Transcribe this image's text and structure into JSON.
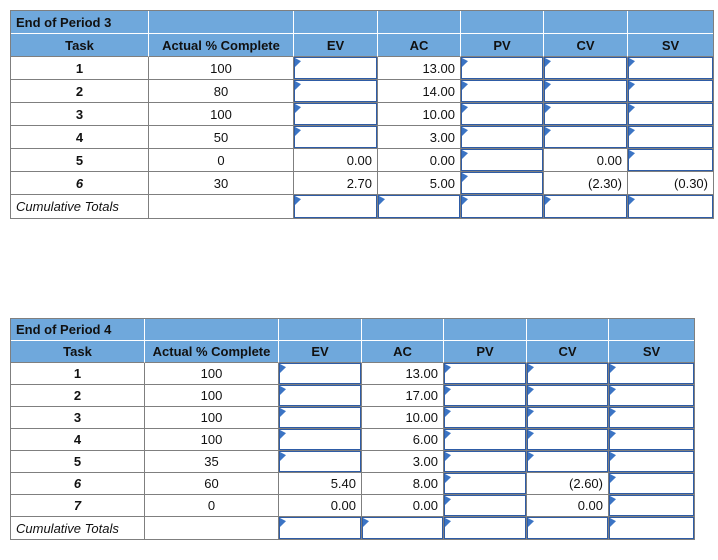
{
  "colors": {
    "header_fill": "#6FA8DC",
    "input_cell_border": "#2E5CA6",
    "flag_triangle": "#3B74C4",
    "gridline": "#7F7F7F",
    "text": "#111111",
    "background": "#FFFFFF"
  },
  "column_headers": [
    "Task",
    "Actual % Complete",
    "EV",
    "AC",
    "PV",
    "CV",
    "SV"
  ],
  "tables": [
    {
      "title": "End of Period 3",
      "cumulative_label": "Cumulative Totals",
      "rows": [
        {
          "task": "1",
          "italic": false,
          "actual": "100",
          "metrics": [
            {
              "col": "EV",
              "text": "",
              "boxed": true
            },
            {
              "col": "AC",
              "text": "13.00",
              "boxed": false
            },
            {
              "col": "PV",
              "text": "",
              "boxed": true
            },
            {
              "col": "CV",
              "text": "",
              "boxed": true
            },
            {
              "col": "SV",
              "text": "",
              "boxed": true
            }
          ]
        },
        {
          "task": "2",
          "italic": false,
          "actual": "80",
          "metrics": [
            {
              "col": "EV",
              "text": "",
              "boxed": true
            },
            {
              "col": "AC",
              "text": "14.00",
              "boxed": false
            },
            {
              "col": "PV",
              "text": "",
              "boxed": true
            },
            {
              "col": "CV",
              "text": "",
              "boxed": true
            },
            {
              "col": "SV",
              "text": "",
              "boxed": true
            }
          ]
        },
        {
          "task": "3",
          "italic": false,
          "actual": "100",
          "metrics": [
            {
              "col": "EV",
              "text": "",
              "boxed": true
            },
            {
              "col": "AC",
              "text": "10.00",
              "boxed": false
            },
            {
              "col": "PV",
              "text": "",
              "boxed": true
            },
            {
              "col": "CV",
              "text": "",
              "boxed": true
            },
            {
              "col": "SV",
              "text": "",
              "boxed": true
            }
          ]
        },
        {
          "task": "4",
          "italic": false,
          "actual": "50",
          "metrics": [
            {
              "col": "EV",
              "text": "",
              "boxed": true
            },
            {
              "col": "AC",
              "text": "3.00",
              "boxed": false
            },
            {
              "col": "PV",
              "text": "",
              "boxed": true
            },
            {
              "col": "CV",
              "text": "",
              "boxed": true
            },
            {
              "col": "SV",
              "text": "",
              "boxed": true
            }
          ]
        },
        {
          "task": "5",
          "italic": false,
          "actual": "0",
          "metrics": [
            {
              "col": "EV",
              "text": "0.00",
              "boxed": false
            },
            {
              "col": "AC",
              "text": "0.00",
              "boxed": false
            },
            {
              "col": "PV",
              "text": "",
              "boxed": true
            },
            {
              "col": "CV",
              "text": "0.00",
              "boxed": false
            },
            {
              "col": "SV",
              "text": "",
              "boxed": true
            }
          ]
        },
        {
          "task": "6",
          "italic": true,
          "actual": "30",
          "metrics": [
            {
              "col": "EV",
              "text": "2.70",
              "boxed": false
            },
            {
              "col": "AC",
              "text": "5.00",
              "boxed": false
            },
            {
              "col": "PV",
              "text": "",
              "boxed": true
            },
            {
              "col": "CV",
              "text": "(2.30)",
              "boxed": false
            },
            {
              "col": "SV",
              "text": "(0.30)",
              "boxed": false
            }
          ]
        }
      ],
      "cumulative": {
        "metrics": [
          {
            "col": "EV",
            "boxed": true
          },
          {
            "col": "AC",
            "boxed": true
          },
          {
            "col": "PV",
            "boxed": true
          },
          {
            "col": "CV",
            "boxed": true
          },
          {
            "col": "SV",
            "boxed": true
          }
        ]
      }
    },
    {
      "title": "End of Period 4",
      "cumulative_label": "Cumulative Totals",
      "rows": [
        {
          "task": "1",
          "italic": false,
          "actual": "100",
          "metrics": [
            {
              "col": "EV",
              "text": "",
              "boxed": true
            },
            {
              "col": "AC",
              "text": "13.00",
              "boxed": false
            },
            {
              "col": "PV",
              "text": "",
              "boxed": true
            },
            {
              "col": "CV",
              "text": "",
              "boxed": true
            },
            {
              "col": "SV",
              "text": "",
              "boxed": true
            }
          ]
        },
        {
          "task": "2",
          "italic": false,
          "actual": "100",
          "metrics": [
            {
              "col": "EV",
              "text": "",
              "boxed": true
            },
            {
              "col": "AC",
              "text": "17.00",
              "boxed": false
            },
            {
              "col": "PV",
              "text": "",
              "boxed": true
            },
            {
              "col": "CV",
              "text": "",
              "boxed": true
            },
            {
              "col": "SV",
              "text": "",
              "boxed": true
            }
          ]
        },
        {
          "task": "3",
          "italic": false,
          "actual": "100",
          "metrics": [
            {
              "col": "EV",
              "text": "",
              "boxed": true
            },
            {
              "col": "AC",
              "text": "10.00",
              "boxed": false
            },
            {
              "col": "PV",
              "text": "",
              "boxed": true
            },
            {
              "col": "CV",
              "text": "",
              "boxed": true
            },
            {
              "col": "SV",
              "text": "",
              "boxed": true
            }
          ]
        },
        {
          "task": "4",
          "italic": false,
          "actual": "100",
          "metrics": [
            {
              "col": "EV",
              "text": "",
              "boxed": true
            },
            {
              "col": "AC",
              "text": "6.00",
              "boxed": false
            },
            {
              "col": "PV",
              "text": "",
              "boxed": true
            },
            {
              "col": "CV",
              "text": "",
              "boxed": true
            },
            {
              "col": "SV",
              "text": "",
              "boxed": true
            }
          ]
        },
        {
          "task": "5",
          "italic": false,
          "actual": "35",
          "metrics": [
            {
              "col": "EV",
              "text": "",
              "boxed": true
            },
            {
              "col": "AC",
              "text": "3.00",
              "boxed": false
            },
            {
              "col": "PV",
              "text": "",
              "boxed": true
            },
            {
              "col": "CV",
              "text": "",
              "boxed": true
            },
            {
              "col": "SV",
              "text": "",
              "boxed": true
            }
          ]
        },
        {
          "task": "6",
          "italic": true,
          "actual": "60",
          "metrics": [
            {
              "col": "EV",
              "text": "5.40",
              "boxed": false
            },
            {
              "col": "AC",
              "text": "8.00",
              "boxed": false
            },
            {
              "col": "PV",
              "text": "",
              "boxed": true
            },
            {
              "col": "CV",
              "text": "(2.60)",
              "boxed": false
            },
            {
              "col": "SV",
              "text": "",
              "boxed": true
            }
          ]
        },
        {
          "task": "7",
          "italic": true,
          "actual": "0",
          "metrics": [
            {
              "col": "EV",
              "text": "0.00",
              "boxed": false
            },
            {
              "col": "AC",
              "text": "0.00",
              "boxed": false
            },
            {
              "col": "PV",
              "text": "",
              "boxed": true
            },
            {
              "col": "CV",
              "text": "0.00",
              "boxed": false
            },
            {
              "col": "SV",
              "text": "",
              "boxed": true
            }
          ]
        }
      ],
      "cumulative": {
        "metrics": [
          {
            "col": "EV",
            "boxed": true
          },
          {
            "col": "AC",
            "boxed": true
          },
          {
            "col": "PV",
            "boxed": true
          },
          {
            "col": "CV",
            "boxed": true
          },
          {
            "col": "SV",
            "boxed": true
          }
        ]
      }
    }
  ]
}
